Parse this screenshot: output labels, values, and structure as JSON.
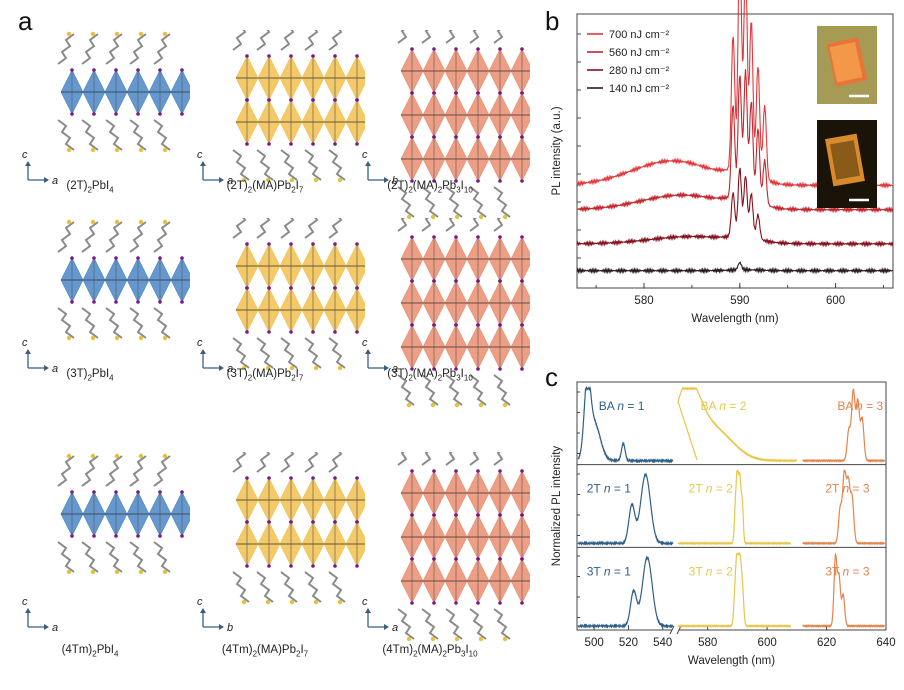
{
  "panels": {
    "a": "a",
    "b": "b",
    "c": "c"
  },
  "panel_a": {
    "structures": [
      {
        "name": "(2T)2PbI4",
        "html": "(2T)<sub>2</sub>PbI<sub>4</sub>",
        "axis_v": "c",
        "axis_h": "a",
        "layers": 1,
        "color": "#4a86c5"
      },
      {
        "name": "(2T)2(MA)Pb2I7",
        "html": "(2T)<sub>2</sub>(MA)Pb<sub>2</sub>I<sub>7</sub>",
        "axis_v": "c",
        "axis_h": "a",
        "layers": 2,
        "color": "#f2c04d"
      },
      {
        "name": "(2T)2(MA)2Pb3I10",
        "html": "(2T)<sub>2</sub>(MA)<sub>2</sub>Pb<sub>3</sub>I<sub>10</sub>",
        "axis_v": "c",
        "axis_h": "b",
        "layers": 3,
        "color": "#ea8d70"
      },
      {
        "name": "(3T)2PbI4",
        "html": "(3T)<sub>2</sub>PbI<sub>4</sub>",
        "axis_v": "c",
        "axis_h": "a",
        "layers": 1,
        "color": "#4a86c5"
      },
      {
        "name": "(3T)2(MA)Pb2I7",
        "html": "(3T)<sub>2</sub>(MA)Pb<sub>2</sub>I<sub>7</sub>",
        "axis_v": "c",
        "axis_h": "a",
        "layers": 2,
        "color": "#f2c04d"
      },
      {
        "name": "(3T)2(MA)2Pb3I10",
        "html": "(3T)<sub>2</sub>(MA)<sub>2</sub>Pb<sub>3</sub>I<sub>10</sub>",
        "axis_v": "c",
        "axis_h": "a",
        "layers": 3,
        "color": "#ea8d70"
      },
      {
        "name": "(4Tm)2PbI4",
        "html": "(4Tm)<sub>2</sub>PbI<sub>4</sub>",
        "axis_v": "c",
        "axis_h": "a",
        "layers": 1,
        "color": "#4a86c5"
      },
      {
        "name": "(4Tm)2(MA)Pb2I7",
        "html": "(4Tm)<sub>2</sub>(MA)Pb<sub>2</sub>I<sub>7</sub>",
        "axis_v": "c",
        "axis_h": "b",
        "layers": 2,
        "color": "#f2c04d"
      },
      {
        "name": "(4Tm)2(MA)2Pb3I10",
        "html": "(4Tm)<sub>2</sub>(MA)<sub>2</sub>Pb<sub>3</sub>I<sub>10</sub>",
        "axis_v": "c",
        "axis_h": "a",
        "layers": 3,
        "color": "#ea8d70"
      }
    ]
  },
  "chart_data": [
    {
      "id": "b",
      "type": "line",
      "xlabel": "Wavelength (nm)",
      "ylabel": "PL intensity (a.u.)",
      "xlim": [
        573,
        606
      ],
      "xticks": [
        580,
        590,
        600
      ],
      "xtick_labels": [
        "580",
        "590",
        "600"
      ],
      "legend": [
        {
          "label": "700 nJ cm⁻²",
          "color": "#e0393c"
        },
        {
          "label": "560 nJ cm⁻²",
          "color": "#c1272d"
        },
        {
          "label": "280 nJ cm⁻²",
          "color": "#86111c"
        },
        {
          "label": "140 nJ cm⁻²",
          "color": "#2b1a1a"
        }
      ],
      "series": [
        {
          "name": "700 nJ cm-2",
          "color": "#e0393c",
          "baseline": 0.38,
          "peaks": [
            [
              589.3,
              0.55
            ],
            [
              590.0,
              0.95
            ],
            [
              590.6,
              0.85
            ],
            [
              591.2,
              0.62
            ],
            [
              591.9,
              0.45
            ],
            [
              592.6,
              0.3
            ]
          ],
          "hump": [
            583,
            0.1
          ]
        },
        {
          "name": "560 nJ cm-2",
          "color": "#c1272d",
          "baseline": 0.28,
          "peaks": [
            [
              589.3,
              0.38
            ],
            [
              590.0,
              0.5
            ],
            [
              590.6,
              0.52
            ],
            [
              591.2,
              0.4
            ],
            [
              591.9,
              0.3
            ],
            [
              592.6,
              0.18
            ]
          ],
          "hump": [
            584,
            0.06
          ]
        },
        {
          "name": "280 nJ cm-2",
          "color": "#86111c",
          "baseline": 0.14,
          "peaks": [
            [
              589.3,
              0.18
            ],
            [
              590.0,
              0.28
            ],
            [
              590.6,
              0.25
            ],
            [
              591.2,
              0.18
            ],
            [
              591.9,
              0.1
            ]
          ],
          "hump": [
            585,
            0.03
          ]
        },
        {
          "name": "140 nJ cm-2",
          "color": "#2b1a1a",
          "baseline": 0.03,
          "peaks": [
            [
              590.0,
              0.03
            ]
          ],
          "hump": [
            586,
            0.0
          ]
        }
      ],
      "insets": [
        "optical micrograph",
        "PL emission micrograph"
      ]
    },
    {
      "id": "c",
      "type": "line",
      "xlabel": "Wavelength (nm)",
      "ylabel": "Normalized PL intensity",
      "xlim_left": [
        490,
        546
      ],
      "xlim_right": [
        570,
        640
      ],
      "xticks": [
        500,
        520,
        540,
        580,
        600,
        620,
        640
      ],
      "xtick_labels": [
        "500",
        "520",
        "540",
        "580",
        "600",
        "620",
        "640"
      ],
      "rows": [
        {
          "label_prefix": "BA",
          "series": [
            {
              "label": "BA n = 1",
              "prefix": "BA",
              "n": "1",
              "color": "#2f5f86",
              "peaks": [
                [
                  496,
                  1.0,
                  2.5
                ],
                [
                  500,
                  0.55,
                  5
                ],
                [
                  517,
                  0.25,
                  1.5
                ]
              ]
            },
            {
              "label": "BA n = 2",
              "prefix": "BA",
              "n": "2",
              "color": "#e8c64a",
              "peaks": [
                [
                  573,
                  1.0,
                  6
                ],
                [
                  582,
                  0.45,
                  9
                ]
              ]
            },
            {
              "label": "BA n = 3",
              "prefix": "BA",
              "n": "3",
              "color": "#e4834d",
              "peaks": [
                [
                  629,
                  1.0,
                  0.8
                ],
                [
                  630.5,
                  0.85,
                  0.8
                ],
                [
                  632,
                  0.6,
                  0.8
                ],
                [
                  627.5,
                  0.45,
                  0.8
                ]
              ]
            }
          ]
        },
        {
          "label_prefix": "2T",
          "series": [
            {
              "label": "2T n = 1",
              "prefix": "2T",
              "n": "1",
              "color": "#2f5f86",
              "peaks": [
                [
                  530,
                  1.0,
                  4
                ],
                [
                  522,
                  0.55,
                  2.5
                ]
              ]
            },
            {
              "label": "2T n = 2",
              "prefix": "2T",
              "n": "2",
              "color": "#e8c64a",
              "peaks": [
                [
                  590,
                  1.0,
                  0.5
                ],
                [
                  590.8,
                  0.9,
                  0.5
                ],
                [
                  591.6,
                  0.6,
                  0.5
                ],
                [
                  589.3,
                  0.5,
                  0.5
                ]
              ]
            },
            {
              "label": "2T n = 3",
              "prefix": "2T",
              "n": "3",
              "color": "#e4834d",
              "peaks": [
                [
                  626,
                  1.0,
                  0.8
                ],
                [
                  627.3,
                  0.85,
                  0.8
                ],
                [
                  628.6,
                  0.65,
                  0.8
                ],
                [
                  624.6,
                  0.5,
                  0.8
                ]
              ]
            }
          ]
        },
        {
          "label_prefix": "3T",
          "series": [
            {
              "label": "3T n = 1",
              "prefix": "3T",
              "n": "1",
              "color": "#2f5f86",
              "peaks": [
                [
                  531,
                  1.0,
                  4
                ],
                [
                  523,
                  0.5,
                  2.5
                ]
              ]
            },
            {
              "label": "3T n = 2",
              "prefix": "3T",
              "n": "2",
              "color": "#e8c64a",
              "peaks": [
                [
                  590,
                  1.0,
                  0.6
                ],
                [
                  590.9,
                  0.85,
                  0.6
                ],
                [
                  591.7,
                  0.5,
                  0.6
                ],
                [
                  589.2,
                  0.5,
                  0.6
                ]
              ]
            },
            {
              "label": "3T n = 3",
              "prefix": "3T",
              "n": "3",
              "color": "#e4834d",
              "peaks": [
                [
                  623,
                  1.0,
                  0.7
                ],
                [
                  624.2,
                  0.7,
                  0.7
                ],
                [
                  625.6,
                  0.45,
                  0.7
                ]
              ]
            }
          ]
        }
      ]
    }
  ]
}
